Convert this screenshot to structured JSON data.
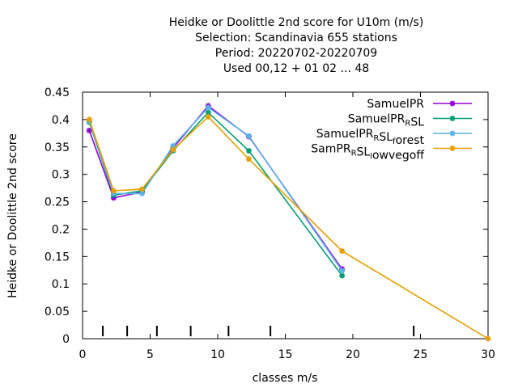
{
  "chart_data": {
    "type": "line",
    "title_lines": [
      "Heidke or Doolittle 2nd score  for U10m (m/s)",
      "Selection: Scandinavia    655 stations",
      "Period: 20220702-20220709",
      "Used  00,12  + 01 02 ... 48"
    ],
    "xlabel": "classes m/s",
    "ylabel": "Heidke or Doolittle 2nd score",
    "xlim": [
      0,
      30
    ],
    "ylim": [
      0,
      0.45
    ],
    "xticks": [
      "0",
      "5",
      "10",
      "15",
      "20",
      "25",
      "30"
    ],
    "yticks": [
      "0",
      "0.05",
      "0.1",
      "0.15",
      "0.2",
      "0.25",
      "0.3",
      "0.35",
      "0.4",
      "0.45"
    ],
    "grid": false,
    "legend_position": "top-right",
    "class_markers_x": [
      1.5,
      3.3,
      5.5,
      8.0,
      10.8,
      13.9,
      24.5
    ],
    "series": [
      {
        "name": "SamuelPR",
        "name_parts": [
          [
            "SamuelPR",
            ""
          ]
        ],
        "color": "#9400d3",
        "x": [
          0.5,
          2.3,
          4.4,
          6.7,
          9.3,
          12.3,
          19.2
        ],
        "y": [
          0.38,
          0.257,
          0.268,
          0.348,
          0.425,
          0.369,
          0.127
        ]
      },
      {
        "name": "SamuelPR_RSL",
        "name_parts": [
          [
            "SamuelPR",
            ""
          ],
          [
            "R",
            "sub"
          ],
          [
            "SL",
            ""
          ]
        ],
        "color": "#009e73",
        "x": [
          0.5,
          2.3,
          4.4,
          6.7,
          9.3,
          12.3,
          19.2
        ],
        "y": [
          0.395,
          0.262,
          0.27,
          0.343,
          0.413,
          0.343,
          0.115
        ]
      },
      {
        "name": "SamuelPR_RSL_forest",
        "name_parts": [
          [
            "SamuelPR",
            ""
          ],
          [
            "R",
            "sub"
          ],
          [
            "SL",
            ""
          ],
          [
            "f",
            "sub"
          ],
          [
            "orest",
            ""
          ]
        ],
        "color": "#56b4e9",
        "x": [
          0.5,
          2.3,
          4.4,
          6.7,
          9.3,
          12.3,
          19.2
        ],
        "y": [
          0.397,
          0.265,
          0.265,
          0.352,
          0.422,
          0.37,
          0.124
        ]
      },
      {
        "name": "SamPR_RSL_lowvegoff",
        "name_parts": [
          [
            "SamPR",
            ""
          ],
          [
            "R",
            "sub"
          ],
          [
            "SL",
            ""
          ],
          [
            "l",
            "sub"
          ],
          [
            "owvegoff",
            ""
          ]
        ],
        "color": "#e69f00",
        "x": [
          0.5,
          2.3,
          4.4,
          6.7,
          9.3,
          12.3,
          19.2,
          30
        ],
        "y": [
          0.4,
          0.27,
          0.273,
          0.345,
          0.405,
          0.328,
          0.16,
          0.0
        ]
      }
    ]
  }
}
